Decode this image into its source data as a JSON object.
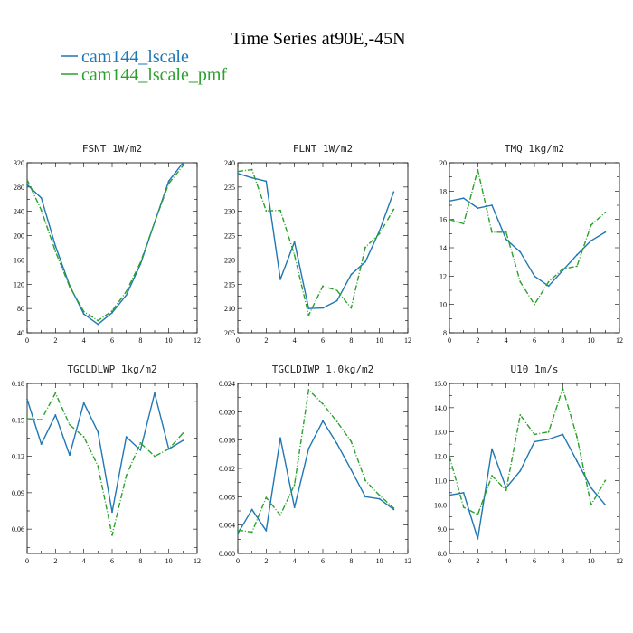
{
  "figure": {
    "title": "Time Series at90E,-45N",
    "legend": [
      {
        "label": "cam144_lscale",
        "color": "#1f77b4"
      },
      {
        "label": "cam144_lscale_pmf",
        "color": "#2ca02c"
      }
    ]
  },
  "chart_data": [
    {
      "type": "line",
      "title": "FSNT  1W/m2",
      "x": [
        0,
        1,
        2,
        3,
        4,
        5,
        6,
        7,
        8,
        9,
        10,
        11
      ],
      "xlim": [
        0,
        12
      ],
      "xticks": [
        0,
        2,
        4,
        6,
        8,
        10,
        12
      ],
      "ylim": [
        40,
        320
      ],
      "yticks": [
        40,
        80,
        120,
        160,
        200,
        240,
        280,
        320
      ],
      "ytick_labels": [
        "40",
        "80",
        "120",
        "160",
        "200",
        "240",
        "280",
        "320"
      ],
      "series": [
        {
          "name": "cam144_lscale",
          "values": [
            284,
            262,
            183,
            118,
            71,
            54,
            73,
            102,
            153,
            222,
            290,
            320
          ]
        },
        {
          "name": "cam144_lscale_pmf",
          "values": [
            292,
            242,
            174,
            116,
            75,
            60,
            76,
            108,
            156,
            222,
            286,
            315
          ]
        }
      ]
    },
    {
      "type": "line",
      "title": "FLNT  1W/m2",
      "x": [
        0,
        1,
        2,
        3,
        4,
        5,
        6,
        7,
        8,
        9,
        10,
        11
      ],
      "xlim": [
        0,
        12
      ],
      "xticks": [
        0,
        2,
        4,
        6,
        8,
        10,
        12
      ],
      "ylim": [
        205,
        240
      ],
      "yticks": [
        205,
        210,
        215,
        220,
        225,
        230,
        235,
        240
      ],
      "ytick_labels": [
        "205",
        "210",
        "215",
        "220",
        "225",
        "230",
        "235",
        "240"
      ],
      "series": [
        {
          "name": "cam144_lscale",
          "values": [
            237.8,
            236.9,
            236.2,
            216,
            223.7,
            210,
            210.1,
            211.6,
            217,
            219.6,
            226,
            234
          ]
        },
        {
          "name": "cam144_lscale_pmf",
          "values": [
            238.2,
            238.6,
            230.1,
            230.2,
            221,
            208.6,
            214.6,
            213.7,
            210.1,
            222.6,
            225.4,
            230.4
          ]
        }
      ]
    },
    {
      "type": "line",
      "title": "TMQ  1kg/m2",
      "x": [
        0,
        1,
        2,
        3,
        4,
        5,
        6,
        7,
        8,
        9,
        10,
        11
      ],
      "xlim": [
        0,
        12
      ],
      "xticks": [
        0,
        2,
        4,
        6,
        8,
        10,
        12
      ],
      "ylim": [
        8,
        20
      ],
      "yticks": [
        8,
        10,
        12,
        14,
        16,
        18,
        20
      ],
      "ytick_labels": [
        "8",
        "10",
        "12",
        "14",
        "16",
        "18",
        "20"
      ],
      "series": [
        {
          "name": "cam144_lscale",
          "values": [
            17.3,
            17.5,
            16.8,
            17,
            14.6,
            13.7,
            12,
            11.3,
            12.4,
            13.5,
            14.5,
            15.1
          ]
        },
        {
          "name": "cam144_lscale_pmf",
          "values": [
            16,
            15.7,
            19.5,
            15.1,
            15.1,
            11.6,
            10,
            11.6,
            12.5,
            12.7,
            15.6,
            16.5
          ]
        }
      ]
    },
    {
      "type": "line",
      "title": "TGCLDLWP  1kg/m2",
      "x": [
        0,
        1,
        2,
        3,
        4,
        5,
        6,
        7,
        8,
        9,
        10,
        11
      ],
      "xlim": [
        0,
        12
      ],
      "xticks": [
        0,
        2,
        4,
        6,
        8,
        10,
        12
      ],
      "ylim": [
        0.04,
        0.18
      ],
      "yticks": [
        0.06,
        0.09,
        0.12,
        0.15,
        0.18
      ],
      "ytick_labels": [
        "0.06",
        "0.09",
        "0.12",
        "0.15",
        "0.18"
      ],
      "series": [
        {
          "name": "cam144_lscale",
          "values": [
            0.167,
            0.13,
            0.154,
            0.121,
            0.164,
            0.14,
            0.074,
            0.136,
            0.125,
            0.172,
            0.126,
            0.133
          ]
        },
        {
          "name": "cam144_lscale_pmf",
          "values": [
            0.151,
            0.15,
            0.172,
            0.146,
            0.136,
            0.112,
            0.055,
            0.104,
            0.131,
            0.12,
            0.126,
            0.139
          ]
        }
      ]
    },
    {
      "type": "line",
      "title": "TGCLDIWP  1.0kg/m2",
      "x": [
        0,
        1,
        2,
        3,
        4,
        5,
        6,
        7,
        8,
        9,
        10,
        11
      ],
      "xlim": [
        0,
        12
      ],
      "xticks": [
        0,
        2,
        4,
        6,
        8,
        10,
        12
      ],
      "ylim": [
        0,
        0.024
      ],
      "yticks": [
        0,
        0.004,
        0.008,
        0.012,
        0.016,
        0.02,
        0.024
      ],
      "ytick_labels": [
        "0.000",
        "0.004",
        "0.008",
        "0.012",
        "0.016",
        "0.020",
        "0.024"
      ],
      "series": [
        {
          "name": "cam144_lscale",
          "values": [
            0.0028,
            0.0062,
            0.0032,
            0.0163,
            0.0065,
            0.0148,
            0.0187,
            0.0155,
            0.0118,
            0.008,
            0.0077,
            0.0062
          ]
        },
        {
          "name": "cam144_lscale_pmf",
          "values": [
            0.0033,
            0.003,
            0.0079,
            0.0054,
            0.0097,
            0.0231,
            0.0211,
            0.0186,
            0.0158,
            0.0103,
            0.0082,
            0.0064
          ]
        }
      ]
    },
    {
      "type": "line",
      "title": "U10  1m/s",
      "x": [
        0,
        1,
        2,
        3,
        4,
        5,
        6,
        7,
        8,
        9,
        10,
        11
      ],
      "xlim": [
        0,
        12
      ],
      "xticks": [
        0,
        2,
        4,
        6,
        8,
        10,
        12
      ],
      "ylim": [
        8,
        15
      ],
      "yticks": [
        8,
        9,
        10,
        11,
        12,
        13,
        14,
        15
      ],
      "ytick_labels": [
        "8.0",
        "9.0",
        "10.0",
        "11.0",
        "12.0",
        "13.0",
        "14.0",
        "15.0"
      ],
      "series": [
        {
          "name": "cam144_lscale",
          "values": [
            10.4,
            10.5,
            8.6,
            12.3,
            10.7,
            11.4,
            12.6,
            12.7,
            12.9,
            11.8,
            10.7,
            10
          ]
        },
        {
          "name": "cam144_lscale_pmf",
          "values": [
            12,
            9.9,
            9.6,
            11.2,
            10.6,
            13.7,
            12.9,
            13,
            14.8,
            12.8,
            10,
            11
          ]
        }
      ]
    }
  ]
}
